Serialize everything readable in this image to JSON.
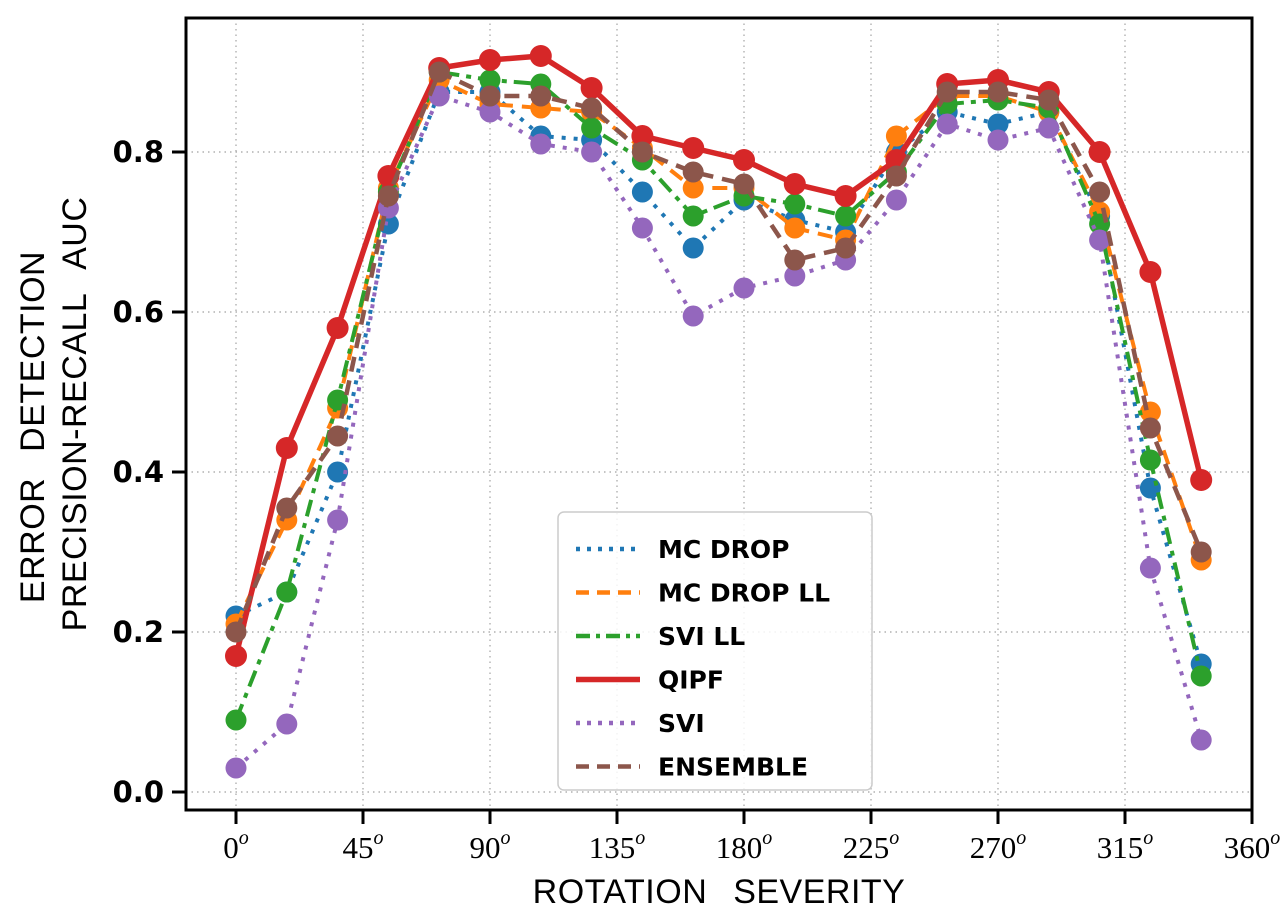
{
  "chart_data": {
    "type": "line",
    "title": "",
    "xlabel": "ROTATION SEVERITY",
    "ylabel_lines": [
      "ERROR DETECTION",
      "PRECISION-RECALL AUC"
    ],
    "x_axis_unit": "degrees",
    "x_tick_suffix": "o",
    "x_tick_degrees": [
      0,
      45,
      90,
      135,
      180,
      225,
      270,
      315,
      360
    ],
    "y_tick_values": [
      0.0,
      0.2,
      0.4,
      0.6,
      0.8
    ],
    "y_tick_labels": [
      "0.0",
      "0.2",
      "0.4",
      "0.6",
      "0.8"
    ],
    "xlim": [
      -17.7,
      360
    ],
    "ylim": [
      -0.0225,
      0.9675
    ],
    "grid": true,
    "legend_position": "lower center",
    "x": [
      0,
      18,
      36,
      54,
      72,
      90,
      108,
      126,
      144,
      162,
      180,
      198,
      216,
      234,
      252,
      270,
      288,
      306,
      324,
      342
    ],
    "series": [
      {
        "name": "MC DROP",
        "color": "#1f77b4",
        "style": "dotted",
        "values": [
          0.22,
          0.25,
          0.4,
          0.71,
          0.875,
          0.875,
          0.82,
          0.815,
          0.75,
          0.68,
          0.74,
          0.715,
          0.7,
          0.8,
          0.85,
          0.835,
          0.85,
          0.72,
          0.38,
          0.16
        ]
      },
      {
        "name": "MC DROP LL",
        "color": "#ff7f0e",
        "style": "dashed",
        "values": [
          0.21,
          0.34,
          0.48,
          0.755,
          0.89,
          0.86,
          0.855,
          0.85,
          0.805,
          0.755,
          0.755,
          0.705,
          0.69,
          0.82,
          0.87,
          0.87,
          0.85,
          0.725,
          0.475,
          0.29
        ]
      },
      {
        "name": "SVI LL",
        "color": "#2ca02c",
        "style": "dashdot",
        "values": [
          0.09,
          0.25,
          0.49,
          0.75,
          0.9,
          0.89,
          0.885,
          0.83,
          0.79,
          0.72,
          0.745,
          0.735,
          0.72,
          0.775,
          0.86,
          0.865,
          0.855,
          0.71,
          0.415,
          0.145
        ]
      },
      {
        "name": "QIPF",
        "color": "#d62728",
        "style": "solid",
        "values": [
          0.17,
          0.43,
          0.58,
          0.77,
          0.905,
          0.915,
          0.92,
          0.88,
          0.82,
          0.805,
          0.79,
          0.76,
          0.745,
          0.79,
          0.885,
          0.89,
          0.875,
          0.8,
          0.65,
          0.39
        ]
      },
      {
        "name": "SVI",
        "color": "#9467bd",
        "style": "dotted",
        "values": [
          0.03,
          0.085,
          0.34,
          0.73,
          0.87,
          0.85,
          0.81,
          0.8,
          0.705,
          0.595,
          0.63,
          0.645,
          0.665,
          0.74,
          0.835,
          0.815,
          0.83,
          0.69,
          0.28,
          0.065
        ]
      },
      {
        "name": "ENSEMBLE",
        "color": "#8c564b",
        "style": "dashed",
        "values": [
          0.2,
          0.355,
          0.445,
          0.745,
          0.9,
          0.87,
          0.87,
          0.855,
          0.8,
          0.775,
          0.76,
          0.665,
          0.68,
          0.77,
          0.875,
          0.875,
          0.865,
          0.75,
          0.455,
          0.3
        ]
      }
    ]
  }
}
